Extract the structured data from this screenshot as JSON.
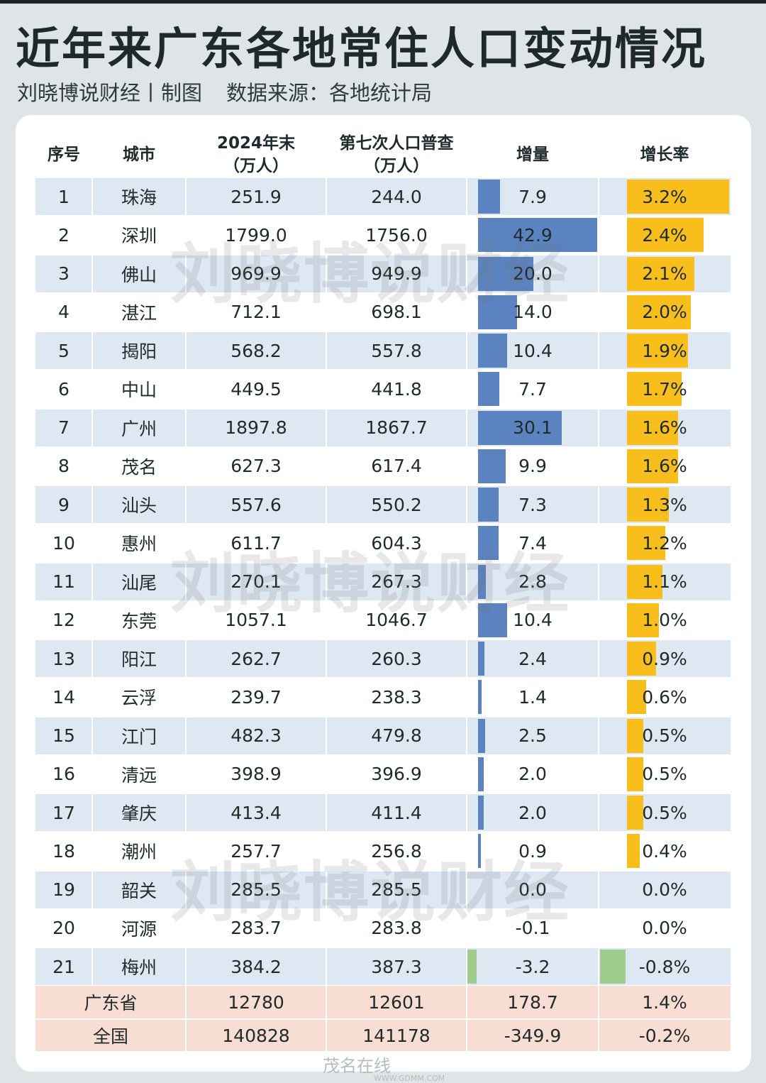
{
  "title": "近年来广东各地常住人口变动情况",
  "subtitle": {
    "author": "刘晓博说财经丨制图",
    "source": "数据来源：各地统计局"
  },
  "watermark": "刘晓博说财经",
  "footer": {
    "logo": "茂名在线",
    "url": "WWW.GDMM.COM"
  },
  "colors": {
    "increase_bar": "#5b83c0",
    "rate_bar": "#f8be1c",
    "negative_bar": "#9fcc8f",
    "row_stripe": "#dde8f3",
    "summary_row": "#f8ddd3"
  },
  "chart_data": {
    "type": "table",
    "title": "近年来广东各地常住人口变动情况",
    "columns": [
      "序号",
      "城市",
      "2024年末（万人）",
      "第七次人口普查（万人）",
      "增量",
      "增长率"
    ],
    "header": {
      "index": "序号",
      "city": "城市",
      "pop2024": {
        "line1": "2024年末",
        "line2": "（万人）"
      },
      "census7": {
        "line1": "第七次人口普查",
        "line2": "（万人）"
      },
      "increase": "增量",
      "rate": "增长率"
    },
    "rows": [
      {
        "no": "1",
        "city": "珠海",
        "pop2024": "251.9",
        "census7": "244.0",
        "increase": "7.9",
        "rate": "3.2%"
      },
      {
        "no": "2",
        "city": "深圳",
        "pop2024": "1799.0",
        "census7": "1756.0",
        "increase": "42.9",
        "rate": "2.4%"
      },
      {
        "no": "3",
        "city": "佛山",
        "pop2024": "969.9",
        "census7": "949.9",
        "increase": "20.0",
        "rate": "2.1%"
      },
      {
        "no": "4",
        "city": "湛江",
        "pop2024": "712.1",
        "census7": "698.1",
        "increase": "14.0",
        "rate": "2.0%"
      },
      {
        "no": "5",
        "city": "揭阳",
        "pop2024": "568.2",
        "census7": "557.8",
        "increase": "10.4",
        "rate": "1.9%"
      },
      {
        "no": "6",
        "city": "中山",
        "pop2024": "449.5",
        "census7": "441.8",
        "increase": "7.7",
        "rate": "1.7%"
      },
      {
        "no": "7",
        "city": "广州",
        "pop2024": "1897.8",
        "census7": "1867.7",
        "increase": "30.1",
        "rate": "1.6%"
      },
      {
        "no": "8",
        "city": "茂名",
        "pop2024": "627.3",
        "census7": "617.4",
        "increase": "9.9",
        "rate": "1.6%"
      },
      {
        "no": "9",
        "city": "汕头",
        "pop2024": "557.6",
        "census7": "550.2",
        "increase": "7.3",
        "rate": "1.3%"
      },
      {
        "no": "10",
        "city": "惠州",
        "pop2024": "611.7",
        "census7": "604.3",
        "increase": "7.4",
        "rate": "1.2%"
      },
      {
        "no": "11",
        "city": "汕尾",
        "pop2024": "270.1",
        "census7": "267.3",
        "increase": "2.8",
        "rate": "1.1%"
      },
      {
        "no": "12",
        "city": "东莞",
        "pop2024": "1057.1",
        "census7": "1046.7",
        "increase": "10.4",
        "rate": "1.0%"
      },
      {
        "no": "13",
        "city": "阳江",
        "pop2024": "262.7",
        "census7": "260.3",
        "increase": "2.4",
        "rate": "0.9%"
      },
      {
        "no": "14",
        "city": "云浮",
        "pop2024": "239.7",
        "census7": "238.3",
        "increase": "1.4",
        "rate": "0.6%"
      },
      {
        "no": "15",
        "city": "江门",
        "pop2024": "482.3",
        "census7": "479.8",
        "increase": "2.5",
        "rate": "0.5%"
      },
      {
        "no": "16",
        "city": "清远",
        "pop2024": "398.9",
        "census7": "396.9",
        "increase": "2.0",
        "rate": "0.5%"
      },
      {
        "no": "17",
        "city": "肇庆",
        "pop2024": "413.4",
        "census7": "411.4",
        "increase": "2.0",
        "rate": "0.5%"
      },
      {
        "no": "18",
        "city": "潮州",
        "pop2024": "257.7",
        "census7": "256.8",
        "increase": "0.9",
        "rate": "0.4%"
      },
      {
        "no": "19",
        "city": "韶关",
        "pop2024": "285.5",
        "census7": "285.5",
        "increase": "0.0",
        "rate": "0.0%"
      },
      {
        "no": "20",
        "city": "河源",
        "pop2024": "283.7",
        "census7": "283.8",
        "increase": "-0.1",
        "rate": "0.0%"
      },
      {
        "no": "21",
        "city": "梅州",
        "pop2024": "384.2",
        "census7": "387.3",
        "increase": "-3.2",
        "rate": "-0.8%"
      }
    ],
    "summary": [
      {
        "label": "广东省",
        "pop2024": "12780",
        "census7": "12601",
        "increase": "178.7",
        "rate": "1.4%"
      },
      {
        "label": "全国",
        "pop2024": "140828",
        "census7": "141178",
        "increase": "-349.9",
        "rate": "-0.2%"
      }
    ],
    "increase_scale_max": 42.9,
    "rate_scale_max": 3.2
  }
}
